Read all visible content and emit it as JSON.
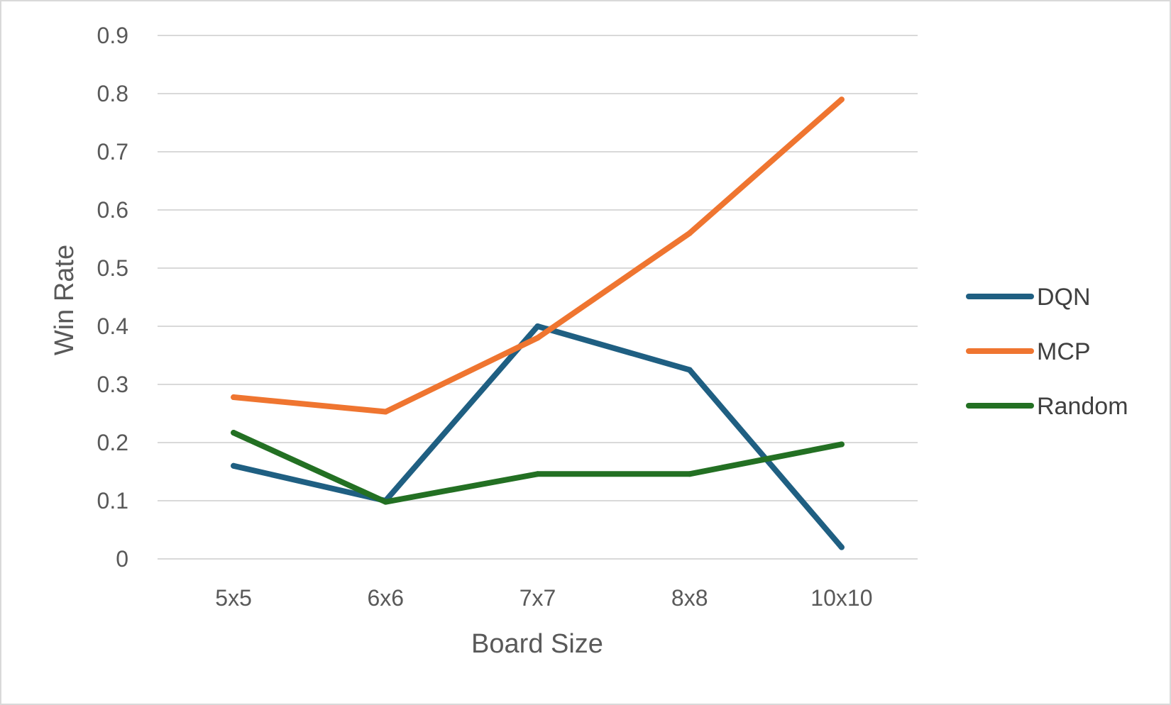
{
  "chart_data": {
    "type": "line",
    "title": "",
    "xlabel": "Board Size",
    "ylabel": "Win Rate",
    "categories": [
      "5x5",
      "6x6",
      "7x7",
      "8x8",
      "10x10"
    ],
    "ylim": [
      0,
      0.9
    ],
    "yticks": [
      "0",
      "0.1",
      "0.2",
      "0.3",
      "0.4",
      "0.5",
      "0.6",
      "0.7",
      "0.8",
      "0.9"
    ],
    "grid": true,
    "legend_position": "right",
    "series": [
      {
        "name": "DQN",
        "color": "#1f5f82",
        "values": [
          0.16,
          0.1,
          0.4,
          0.325,
          0.02
        ]
      },
      {
        "name": "MCP",
        "color": "#ef7530",
        "values": [
          0.278,
          0.253,
          0.38,
          0.56,
          0.79
        ]
      },
      {
        "name": "Random",
        "color": "#237023",
        "values": [
          0.217,
          0.098,
          0.146,
          0.146,
          0.197
        ]
      }
    ]
  }
}
